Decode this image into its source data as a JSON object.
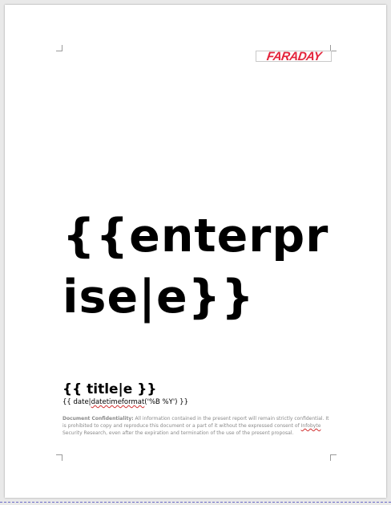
{
  "header": {
    "logo_text": "FARADAY"
  },
  "cover": {
    "enterprise_placeholder": "{{enterprise|e}}",
    "title_placeholder": "{{ title|e }}",
    "date_prefix": "{{ date|",
    "date_filter": "datetimeformat",
    "date_suffix": "('%B %Y') }}"
  },
  "confidentiality": {
    "label": "Document Confidentiality:",
    "text_before_company": " All information contained in the present report will remain strictly confidential. It is prohibited to copy and reproduce this document or a part of it without the expressed consent of ",
    "company": "Infobyte",
    "text_after_company": " Security Research, even after the expiration and termination of the use of the present proposal."
  },
  "colors": {
    "brand_red": "#e3243b",
    "background": "#e9e9e9",
    "page": "#ffffff",
    "spellcheck_underline": "#d03030"
  }
}
